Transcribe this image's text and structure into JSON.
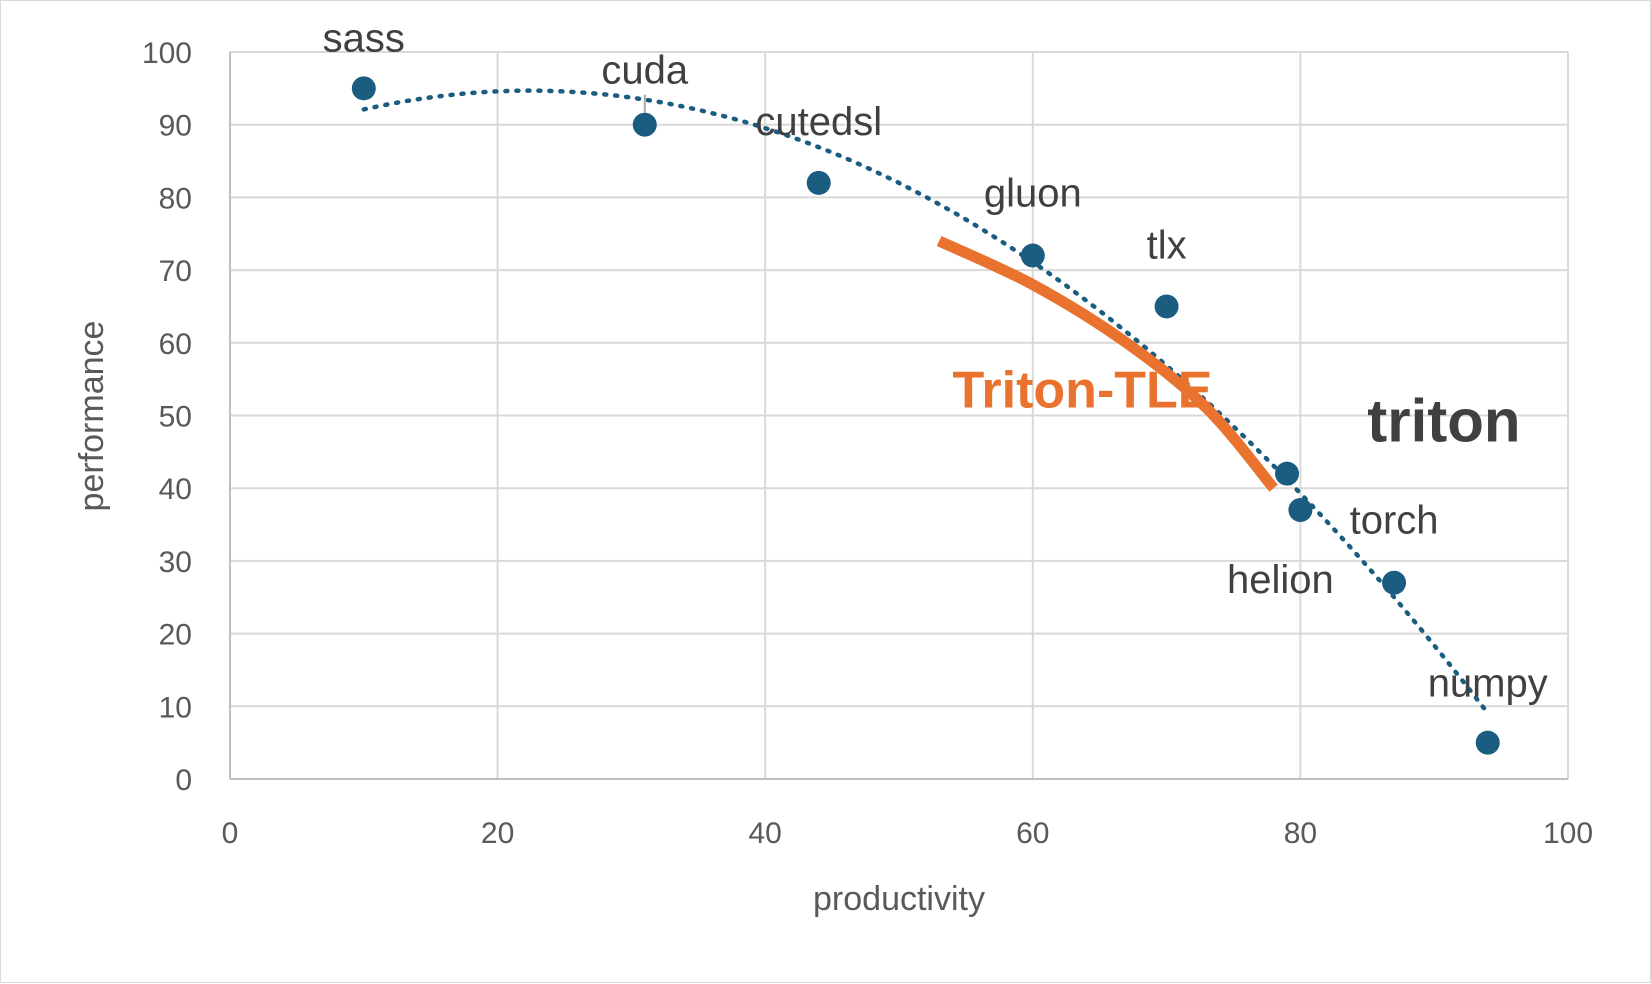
{
  "chart_data": {
    "type": "scatter",
    "title": "",
    "xlabel": "productivity",
    "ylabel": "performance",
    "xlim": [
      0,
      100
    ],
    "ylim": [
      0,
      100
    ],
    "x_ticks": [
      "0",
      "20",
      "40",
      "60",
      "80",
      "100"
    ],
    "y_ticks": [
      "0",
      "10",
      "20",
      "30",
      "40",
      "50",
      "60",
      "70",
      "80",
      "90",
      "100"
    ],
    "grid": true,
    "legend": "none",
    "point_color": "#1a5d80",
    "trendline": {
      "style": "dotted",
      "type": "polynomial",
      "color": "#1a5d80"
    },
    "points": [
      {
        "label": "sass",
        "x": 10,
        "y": 95
      },
      {
        "label": "cuda",
        "x": 31,
        "y": 90
      },
      {
        "label": "cutedsl",
        "x": 44,
        "y": 82
      },
      {
        "label": "gluon",
        "x": 60,
        "y": 72
      },
      {
        "label": "tlx",
        "x": 70,
        "y": 65
      },
      {
        "label": "triton",
        "x": 79,
        "y": 42
      },
      {
        "label": "helion",
        "x": 80,
        "y": 37
      },
      {
        "label": "torch",
        "x": 87,
        "y": 27
      },
      {
        "label": "numpy",
        "x": 94,
        "y": 5
      }
    ],
    "highlight_curve": {
      "name": "Triton-TLE",
      "color": "#e8722e",
      "points": [
        [
          53,
          74
        ],
        [
          60,
          68
        ],
        [
          67,
          60
        ],
        [
          73,
          51
        ],
        [
          78,
          40
        ]
      ]
    },
    "annotations": [
      {
        "text": "Triton-TLE",
        "x": 54,
        "y": 54,
        "color": "#e8722e"
      },
      {
        "text": "triton",
        "x": 85,
        "y": 50,
        "color": "#404040"
      }
    ]
  }
}
